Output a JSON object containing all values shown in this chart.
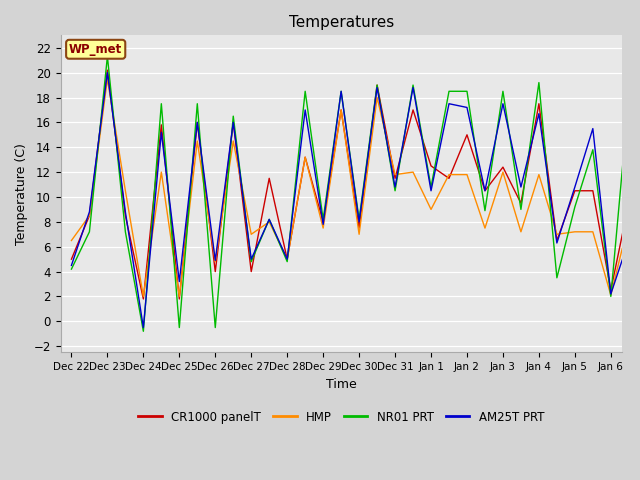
{
  "title": "Temperatures",
  "xlabel": "Time",
  "ylabel": "Temperature (C)",
  "ylim": [
    -2.5,
    23
  ],
  "yticks": [
    -2,
    0,
    2,
    4,
    6,
    8,
    10,
    12,
    14,
    16,
    18,
    20,
    22
  ],
  "bg_color": "#d4d4d4",
  "plot_bg_color": "#e8e8e8",
  "annotation_text": "WP_met",
  "annotation_bg": "#ffff99",
  "annotation_border": "#8b4513",
  "annotation_text_color": "#8b0000",
  "colors": {
    "CR1000 panelT": "#cc0000",
    "HMP": "#ff8c00",
    "NR01 PRT": "#00bb00",
    "AM25T PRT": "#0000cc"
  },
  "x_labels": [
    "Dec 22",
    "Dec 23",
    "Dec 24",
    "Dec 25",
    "Dec 26",
    "Dec 27",
    "Dec 28",
    "Dec 29",
    "Dec 30",
    "Dec 31",
    "Jan 1",
    "Jan 2",
    "Jan 3",
    "Jan 4",
    "Jan 5",
    "Jan 6"
  ],
  "series": {
    "CR1000 panelT": [
      5.0,
      8.5,
      20.2,
      8.5,
      1.8,
      15.8,
      1.8,
      16.0,
      4.0,
      16.0,
      4.0,
      11.5,
      5.0,
      13.2,
      8.0,
      17.0,
      7.5,
      19.0,
      11.5,
      17.0,
      12.5,
      11.5,
      15.0,
      10.5,
      12.4,
      9.5,
      17.5,
      6.5,
      10.5,
      10.5,
      2.5,
      9.5
    ],
    "HMP": [
      6.5,
      8.5,
      19.5,
      10.5,
      2.0,
      12.0,
      2.0,
      14.5,
      4.8,
      14.5,
      7.0,
      8.0,
      5.0,
      13.2,
      7.5,
      17.0,
      7.0,
      18.0,
      11.8,
      12.0,
      9.0,
      11.8,
      11.8,
      7.5,
      12.0,
      7.2,
      11.8,
      7.0,
      7.2,
      7.2,
      2.1,
      8.0
    ],
    "NR01 PRT": [
      4.2,
      7.2,
      21.3,
      7.2,
      -0.8,
      17.5,
      -0.5,
      17.5,
      -0.5,
      16.5,
      4.8,
      8.2,
      4.8,
      18.5,
      8.2,
      18.5,
      8.2,
      19.0,
      10.5,
      19.0,
      10.8,
      18.5,
      18.5,
      8.9,
      18.5,
      9.0,
      19.2,
      3.5,
      9.2,
      13.8,
      2.0,
      18.0
    ],
    "AM25T PRT": [
      4.5,
      8.8,
      20.0,
      8.8,
      -0.5,
      15.2,
      3.2,
      16.0,
      4.9,
      16.0,
      5.0,
      8.2,
      5.0,
      17.0,
      7.8,
      18.5,
      8.0,
      18.8,
      10.8,
      18.8,
      10.5,
      17.5,
      17.2,
      10.5,
      17.5,
      10.8,
      16.7,
      6.3,
      10.8,
      15.5,
      2.2,
      6.5
    ]
  },
  "n_per_day": 2,
  "figsize": [
    6.4,
    4.8
  ],
  "dpi": 100
}
